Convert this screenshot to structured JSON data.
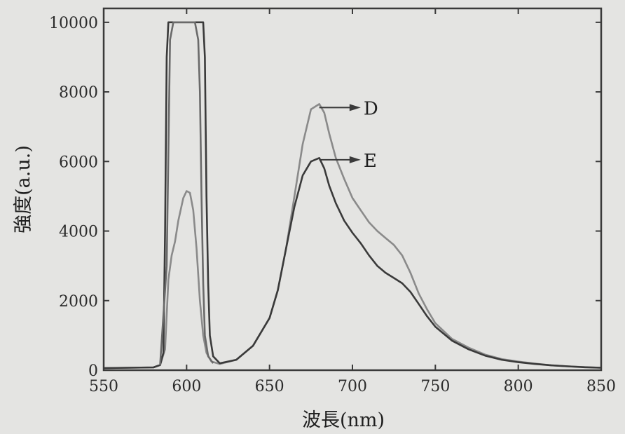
{
  "chart_data": {
    "type": "line",
    "xlabel": "波長(nm)",
    "ylabel": "強度(a.u.)",
    "xlim": [
      550,
      850
    ],
    "ylim": [
      0,
      10400
    ],
    "x_ticks": [
      550,
      600,
      650,
      700,
      750,
      800,
      850
    ],
    "y_ticks": [
      0,
      2000,
      4000,
      6000,
      8000,
      10000
    ],
    "grid": false,
    "series": [
      {
        "name": "D",
        "color": "#8a8a8a",
        "points": [
          [
            550,
            60
          ],
          [
            580,
            80
          ],
          [
            584,
            150
          ],
          [
            587,
            600
          ],
          [
            589,
            2600
          ],
          [
            591,
            3300
          ],
          [
            593,
            3700
          ],
          [
            595,
            4300
          ],
          [
            598,
            4950
          ],
          [
            600,
            5150
          ],
          [
            602,
            5100
          ],
          [
            604,
            4600
          ],
          [
            606,
            3500
          ],
          [
            608,
            2000
          ],
          [
            610,
            1000
          ],
          [
            612,
            500
          ],
          [
            615,
            250
          ],
          [
            620,
            180
          ],
          [
            630,
            300
          ],
          [
            640,
            700
          ],
          [
            650,
            1500
          ],
          [
            655,
            2300
          ],
          [
            660,
            3500
          ],
          [
            665,
            5000
          ],
          [
            670,
            6500
          ],
          [
            675,
            7500
          ],
          [
            680,
            7650
          ],
          [
            683,
            7400
          ],
          [
            686,
            6800
          ],
          [
            690,
            6100
          ],
          [
            695,
            5500
          ],
          [
            700,
            4950
          ],
          [
            705,
            4600
          ],
          [
            710,
            4250
          ],
          [
            715,
            4000
          ],
          [
            720,
            3800
          ],
          [
            725,
            3600
          ],
          [
            730,
            3300
          ],
          [
            735,
            2800
          ],
          [
            740,
            2200
          ],
          [
            745,
            1750
          ],
          [
            750,
            1350
          ],
          [
            760,
            900
          ],
          [
            770,
            650
          ],
          [
            780,
            450
          ],
          [
            790,
            320
          ],
          [
            800,
            250
          ],
          [
            810,
            190
          ],
          [
            820,
            140
          ],
          [
            830,
            110
          ],
          [
            840,
            90
          ],
          [
            850,
            70
          ]
        ]
      },
      {
        "name": "E",
        "color": "#3a3a3a",
        "points": [
          [
            550,
            60
          ],
          [
            580,
            80
          ],
          [
            584,
            150
          ],
          [
            586,
            500
          ],
          [
            587,
            4000
          ],
          [
            588,
            9000
          ],
          [
            589,
            10000
          ],
          [
            610,
            10000
          ],
          [
            611,
            9000
          ],
          [
            612,
            5000
          ],
          [
            613,
            2500
          ],
          [
            614,
            1000
          ],
          [
            616,
            400
          ],
          [
            620,
            200
          ],
          [
            630,
            300
          ],
          [
            640,
            700
          ],
          [
            650,
            1500
          ],
          [
            655,
            2300
          ],
          [
            660,
            3500
          ],
          [
            665,
            4700
          ],
          [
            670,
            5600
          ],
          [
            675,
            6000
          ],
          [
            680,
            6100
          ],
          [
            683,
            5800
          ],
          [
            686,
            5300
          ],
          [
            690,
            4800
          ],
          [
            695,
            4300
          ],
          [
            700,
            3950
          ],
          [
            705,
            3650
          ],
          [
            710,
            3300
          ],
          [
            715,
            3000
          ],
          [
            720,
            2800
          ],
          [
            725,
            2650
          ],
          [
            730,
            2500
          ],
          [
            735,
            2250
          ],
          [
            740,
            1900
          ],
          [
            745,
            1550
          ],
          [
            750,
            1250
          ],
          [
            760,
            850
          ],
          [
            770,
            600
          ],
          [
            780,
            420
          ],
          [
            790,
            300
          ],
          [
            800,
            230
          ],
          [
            810,
            180
          ],
          [
            820,
            140
          ],
          [
            830,
            110
          ],
          [
            840,
            85
          ],
          [
            850,
            70
          ]
        ]
      },
      {
        "name": "",
        "color": "#6a6a6a",
        "points": [
          [
            584,
            150
          ],
          [
            588,
            3000
          ],
          [
            590,
            9500
          ],
          [
            592,
            10000
          ],
          [
            595,
            10000
          ],
          [
            598,
            10000
          ],
          [
            600,
            10000
          ],
          [
            602,
            10000
          ],
          [
            605,
            10000
          ],
          [
            607,
            9500
          ],
          [
            608,
            8000
          ],
          [
            609,
            5000
          ],
          [
            610,
            2500
          ],
          [
            611,
            1000
          ],
          [
            613,
            400
          ],
          [
            616,
            200
          ]
        ]
      }
    ],
    "annotations": [
      {
        "label": "D",
        "from": [
          680,
          7550
        ],
        "to": [
          705,
          7550
        ]
      },
      {
        "label": "E",
        "from": [
          680,
          6050
        ],
        "to": [
          705,
          6050
        ]
      }
    ]
  }
}
